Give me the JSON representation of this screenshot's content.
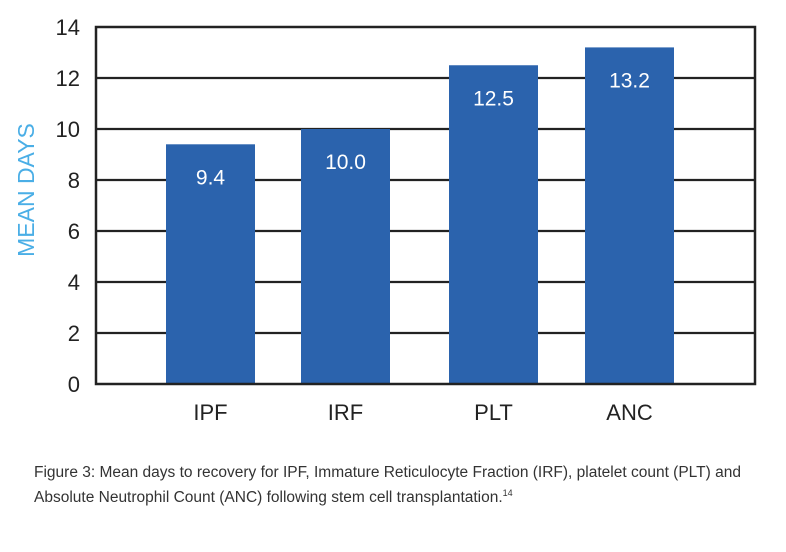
{
  "chart_data": {
    "type": "bar",
    "categories": [
      "IPF",
      "IRF",
      "PLT",
      "ANC"
    ],
    "values": [
      9.4,
      10.0,
      12.5,
      13.2
    ],
    "data_labels": [
      "9.4",
      "10.0",
      "12.5",
      "13.2"
    ],
    "xlabel": "",
    "ylabel": "MEAN DAYS",
    "ylim": [
      0,
      14
    ],
    "yticks": [
      0,
      2,
      4,
      6,
      8,
      10,
      12,
      14
    ],
    "grid": true,
    "legend": "none",
    "colors": {
      "bar": "#2b63ad",
      "ylabel": "#4aaee6",
      "grid": "#222222"
    }
  },
  "caption": {
    "text": "Figure 3:  Mean days to recovery for IPF, Immature Reticulocyte Fraction (IRF), platelet count (PLT) and Absolute Neutrophil Count (ANC) following stem cell transplantation.",
    "ref": "14"
  }
}
